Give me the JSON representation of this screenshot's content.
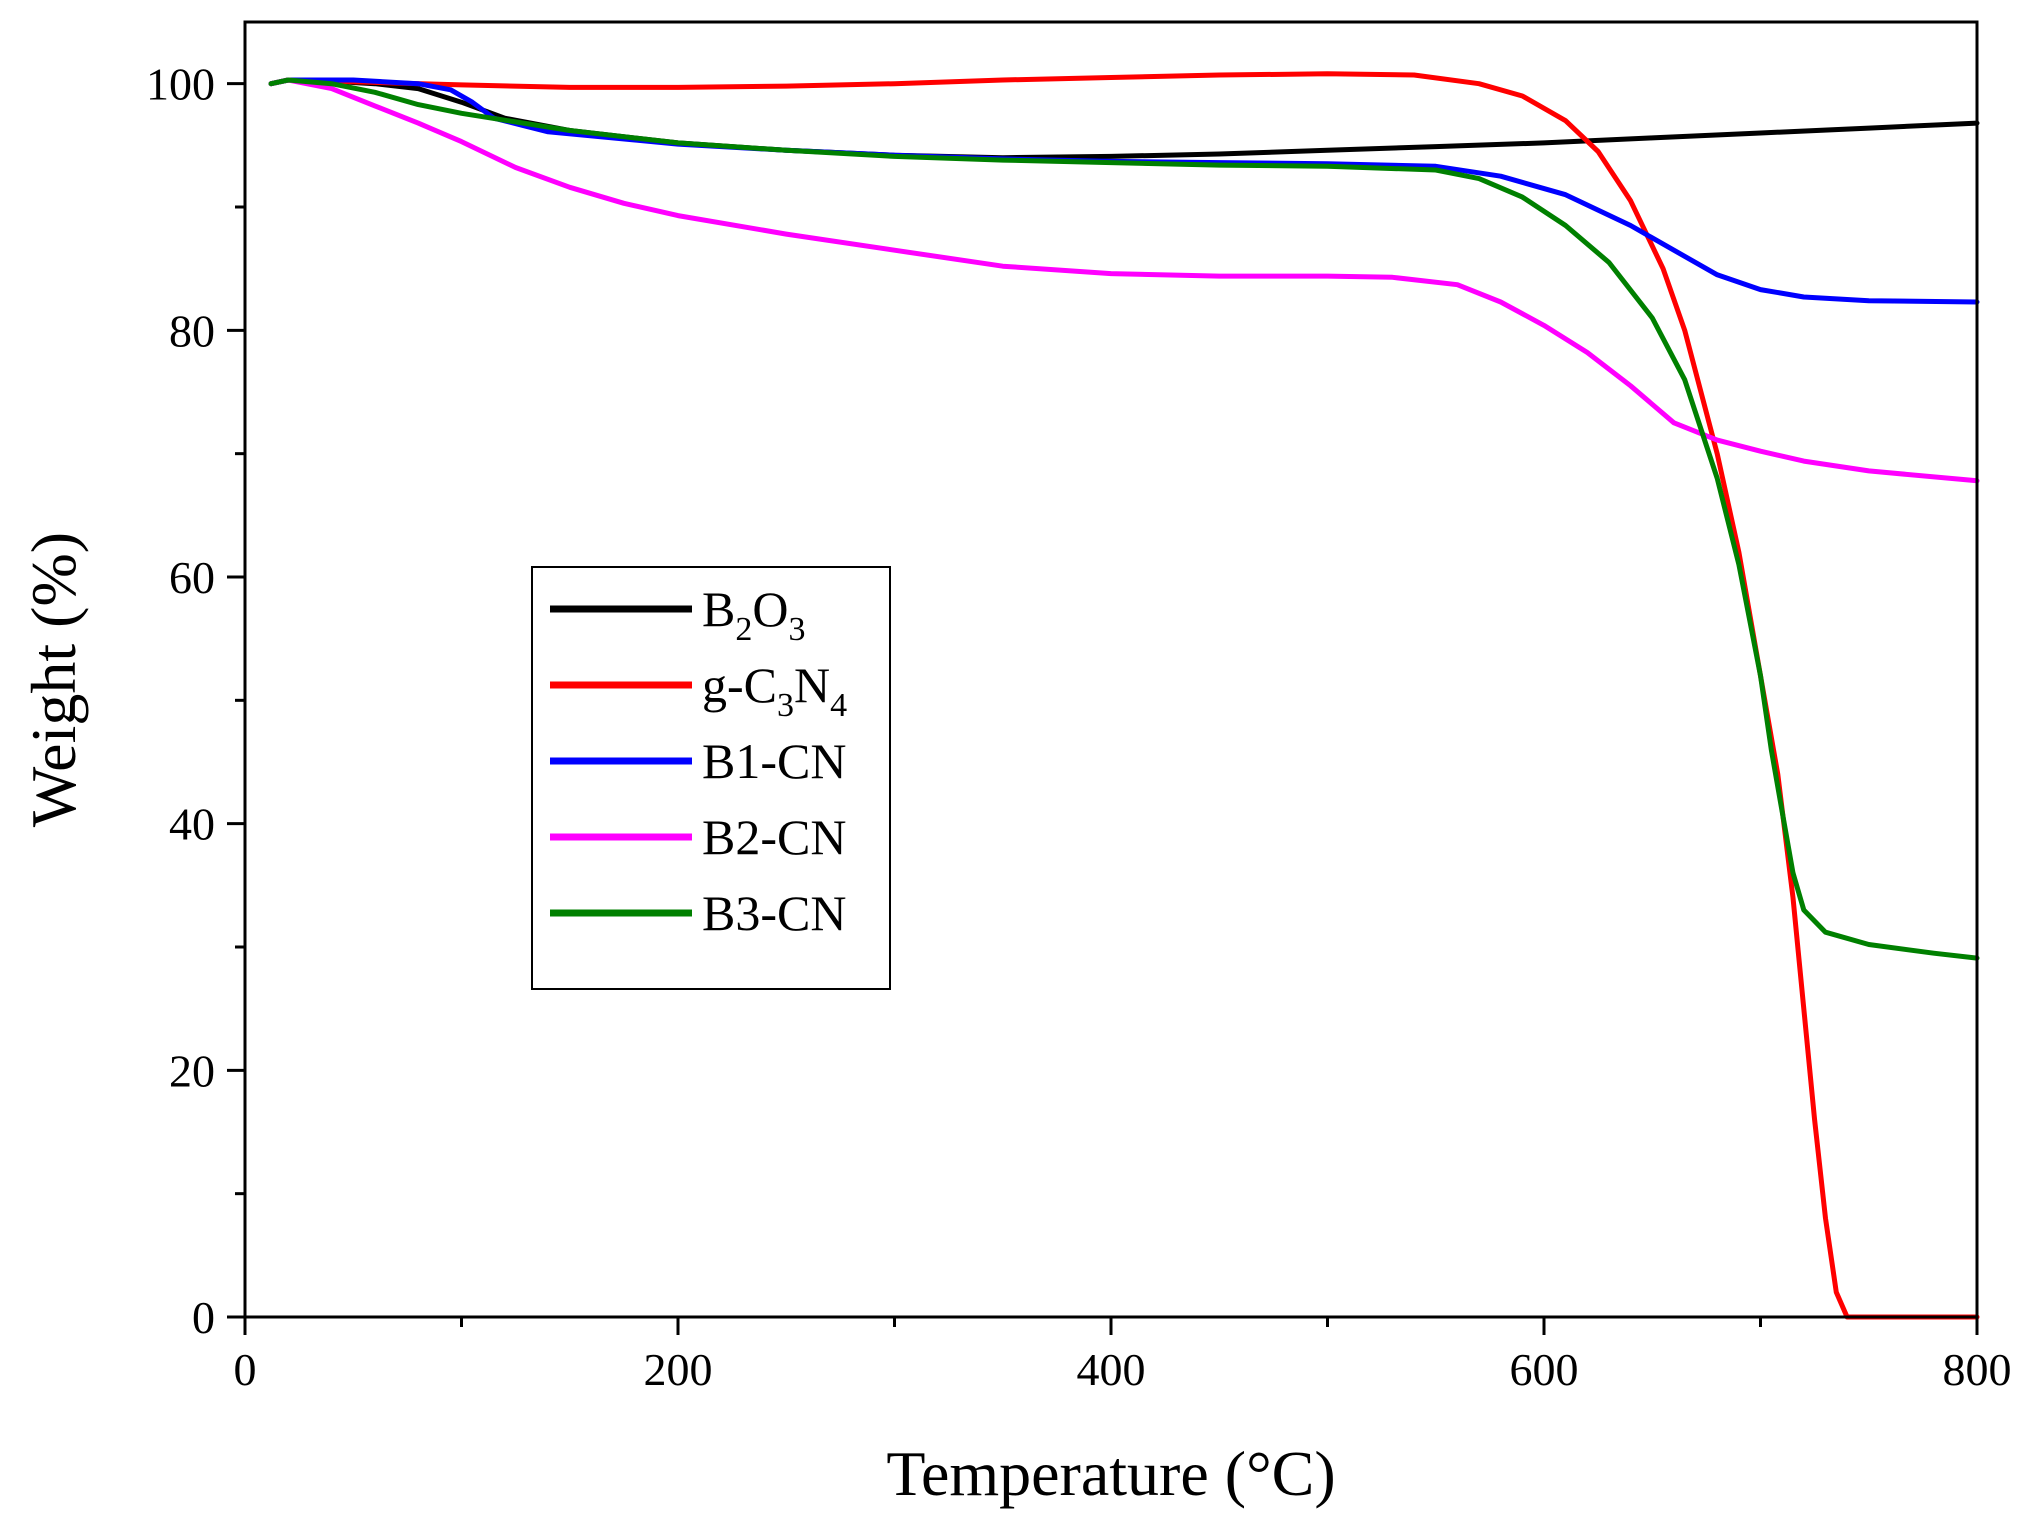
{
  "chart_data": {
    "type": "line",
    "title": "",
    "xlabel": "Temperature (°C)",
    "ylabel": "Weight (%)",
    "xlim": [
      0,
      800
    ],
    "ylim": [
      0,
      105
    ],
    "x_ticks": [
      0,
      200,
      400,
      600,
      800
    ],
    "y_ticks": [
      0,
      20,
      40,
      60,
      80,
      100
    ],
    "grid": false,
    "legend_position": "center-left",
    "series": [
      {
        "name": "B2O3",
        "label_main": "B",
        "label_sub1": "2",
        "label_mid": "O",
        "label_sub2": "3",
        "label_end": "",
        "color": "#000000",
        "points": [
          [
            12,
            100
          ],
          [
            20,
            100.3
          ],
          [
            40,
            100.2
          ],
          [
            60,
            100
          ],
          [
            80,
            99.6
          ],
          [
            100,
            98.5
          ],
          [
            120,
            97.2
          ],
          [
            150,
            96.2
          ],
          [
            200,
            95.2
          ],
          [
            250,
            94.6
          ],
          [
            300,
            94.2
          ],
          [
            350,
            94.0
          ],
          [
            400,
            94.1
          ],
          [
            450,
            94.3
          ],
          [
            500,
            94.6
          ],
          [
            550,
            94.9
          ],
          [
            600,
            95.2
          ],
          [
            650,
            95.6
          ],
          [
            700,
            96.0
          ],
          [
            750,
            96.4
          ],
          [
            800,
            96.8
          ]
        ]
      },
      {
        "name": "g-C3N4",
        "label_main": "g-C",
        "label_sub1": "3",
        "label_mid": "N",
        "label_sub2": "4",
        "label_end": "",
        "color": "#ff0000",
        "points": [
          [
            12,
            100
          ],
          [
            20,
            100.3
          ],
          [
            60,
            100.1
          ],
          [
            100,
            99.9
          ],
          [
            150,
            99.7
          ],
          [
            200,
            99.7
          ],
          [
            250,
            99.8
          ],
          [
            300,
            100.0
          ],
          [
            350,
            100.3
          ],
          [
            400,
            100.5
          ],
          [
            450,
            100.7
          ],
          [
            500,
            100.8
          ],
          [
            540,
            100.7
          ],
          [
            570,
            100.0
          ],
          [
            590,
            99.0
          ],
          [
            610,
            97.0
          ],
          [
            625,
            94.5
          ],
          [
            640,
            90.5
          ],
          [
            655,
            85
          ],
          [
            665,
            80
          ],
          [
            680,
            70
          ],
          [
            690,
            62
          ],
          [
            700,
            52
          ],
          [
            708,
            44
          ],
          [
            715,
            34
          ],
          [
            720,
            25
          ],
          [
            725,
            16
          ],
          [
            730,
            8
          ],
          [
            735,
            2
          ],
          [
            740,
            0
          ],
          [
            800,
            0
          ]
        ]
      },
      {
        "name": "B1-CN",
        "label_main": "B1-CN",
        "label_sub1": "",
        "label_mid": "",
        "label_sub2": "",
        "label_end": "",
        "color": "#0000ff",
        "points": [
          [
            12,
            100
          ],
          [
            20,
            100.3
          ],
          [
            50,
            100.3
          ],
          [
            80,
            100
          ],
          [
            95,
            99.5
          ],
          [
            105,
            98.5
          ],
          [
            115,
            97.2
          ],
          [
            140,
            96.1
          ],
          [
            200,
            95.1
          ],
          [
            250,
            94.6
          ],
          [
            300,
            94.2
          ],
          [
            350,
            93.9
          ],
          [
            400,
            93.7
          ],
          [
            450,
            93.6
          ],
          [
            500,
            93.5
          ],
          [
            550,
            93.3
          ],
          [
            580,
            92.5
          ],
          [
            610,
            91
          ],
          [
            640,
            88.5
          ],
          [
            660,
            86.5
          ],
          [
            680,
            84.5
          ],
          [
            700,
            83.3
          ],
          [
            720,
            82.7
          ],
          [
            750,
            82.4
          ],
          [
            800,
            82.3
          ]
        ]
      },
      {
        "name": "B2-CN",
        "label_main": "B2-CN",
        "label_sub1": "",
        "label_mid": "",
        "label_sub2": "",
        "label_end": "",
        "color": "#ff00ff",
        "points": [
          [
            12,
            100
          ],
          [
            20,
            100.3
          ],
          [
            40,
            99.6
          ],
          [
            60,
            98.2
          ],
          [
            80,
            96.8
          ],
          [
            100,
            95.3
          ],
          [
            125,
            93.2
          ],
          [
            150,
            91.6
          ],
          [
            175,
            90.3
          ],
          [
            200,
            89.3
          ],
          [
            250,
            87.8
          ],
          [
            300,
            86.5
          ],
          [
            350,
            85.2
          ],
          [
            400,
            84.6
          ],
          [
            450,
            84.4
          ],
          [
            500,
            84.4
          ],
          [
            530,
            84.3
          ],
          [
            560,
            83.7
          ],
          [
            580,
            82.3
          ],
          [
            600,
            80.4
          ],
          [
            620,
            78.2
          ],
          [
            640,
            75.5
          ],
          [
            660,
            72.5
          ],
          [
            680,
            71.1
          ],
          [
            700,
            70.2
          ],
          [
            720,
            69.4
          ],
          [
            750,
            68.6
          ],
          [
            800,
            67.8
          ]
        ]
      },
      {
        "name": "B3-CN",
        "label_main": "B3-CN",
        "label_sub1": "",
        "label_mid": "",
        "label_sub2": "",
        "label_end": "",
        "color": "#008000",
        "points": [
          [
            12,
            100
          ],
          [
            20,
            100.3
          ],
          [
            40,
            100
          ],
          [
            60,
            99.3
          ],
          [
            80,
            98.3
          ],
          [
            100,
            97.6
          ],
          [
            150,
            96.2
          ],
          [
            200,
            95.2
          ],
          [
            250,
            94.6
          ],
          [
            300,
            94.1
          ],
          [
            350,
            93.8
          ],
          [
            400,
            93.6
          ],
          [
            450,
            93.4
          ],
          [
            500,
            93.3
          ],
          [
            550,
            93.0
          ],
          [
            570,
            92.3
          ],
          [
            590,
            90.8
          ],
          [
            610,
            88.5
          ],
          [
            630,
            85.5
          ],
          [
            650,
            81
          ],
          [
            665,
            76
          ],
          [
            680,
            68
          ],
          [
            690,
            61
          ],
          [
            700,
            52
          ],
          [
            705,
            46
          ],
          [
            710,
            41
          ],
          [
            715,
            36
          ],
          [
            720,
            33
          ],
          [
            730,
            31.2
          ],
          [
            750,
            30.2
          ],
          [
            780,
            29.5
          ],
          [
            800,
            29.1
          ]
        ]
      }
    ]
  }
}
